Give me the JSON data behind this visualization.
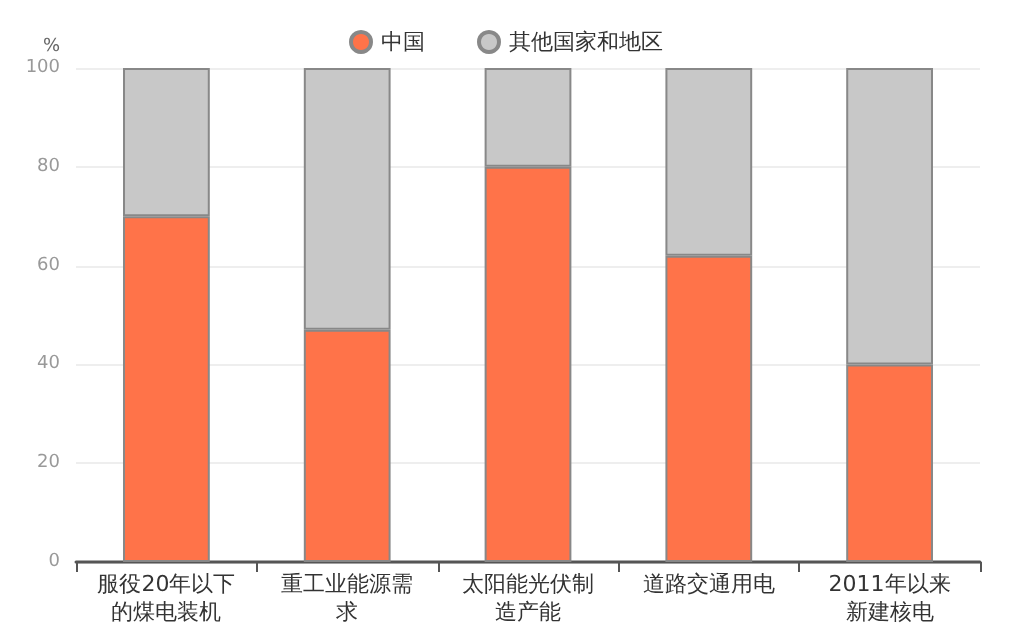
{
  "chart_data": {
    "type": "bar",
    "ylabel": "%",
    "categories": [
      "服役20年以下的煤电装机",
      "重工业能源需求",
      "太阳能光伏制造产能",
      "道路交通用电",
      "2011年以来新建核电"
    ],
    "series": [
      {
        "name": "中国",
        "color": "#ff7349",
        "values": [
          70,
          47,
          80,
          62,
          40
        ]
      },
      {
        "name": "其他国家和地区",
        "color": "#c8c8c8",
        "values": [
          30,
          53,
          20,
          38,
          60
        ]
      }
    ],
    "stacked": true,
    "ylim": [
      0,
      100
    ],
    "yticks": [
      0,
      20,
      40,
      60,
      80,
      100
    ],
    "grid": "y",
    "legend": "top"
  }
}
